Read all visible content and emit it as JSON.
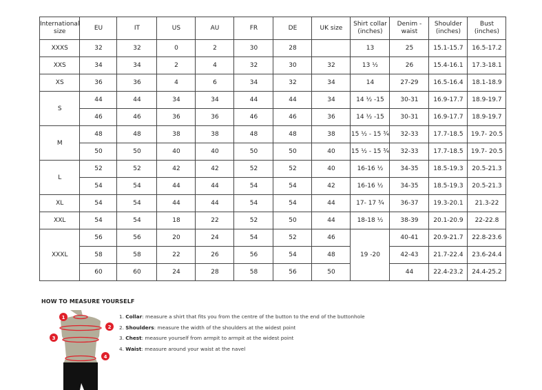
{
  "table": {
    "headers": [
      "International size",
      "EU",
      "IT",
      "US",
      "AU",
      "FR",
      "DE",
      "UK size",
      "Shirt collar (inches)",
      "Denim - waist",
      "Shoulder (inches)",
      "Bust (inches)"
    ],
    "groups": [
      {
        "size": "XXXS",
        "rows": [
          [
            "32",
            "32",
            "0",
            "2",
            "30",
            "28",
            "",
            "13",
            "25",
            "15.1-15.7",
            "16.5-17.2"
          ]
        ]
      },
      {
        "size": "XXS",
        "rows": [
          [
            "34",
            "34",
            "2",
            "4",
            "32",
            "30",
            "32",
            "13 ½",
            "26",
            "15.4-16.1",
            "17.3-18.1"
          ]
        ]
      },
      {
        "size": "XS",
        "rows": [
          [
            "36",
            "36",
            "4",
            "6",
            "34",
            "32",
            "34",
            "14",
            "27-29",
            "16.5-16.4",
            "18.1-18.9"
          ]
        ]
      },
      {
        "size": "S",
        "rows": [
          [
            "44",
            "44",
            "34",
            "34",
            "44",
            "44",
            "34",
            "14 ½ -15",
            "30-31",
            "16.9-17.7",
            "18.9-19.7"
          ],
          [
            "46",
            "46",
            "36",
            "36",
            "46",
            "46",
            "36",
            "14 ½ -15",
            "30-31",
            "16.9-17.7",
            "18.9-19.7"
          ]
        ]
      },
      {
        "size": "M",
        "rows": [
          [
            "48",
            "48",
            "38",
            "38",
            "48",
            "48",
            "38",
            "15 ½ - 15 ¾",
            "32-33",
            "17.7-18.5",
            "19.7- 20.5"
          ],
          [
            "50",
            "50",
            "40",
            "40",
            "50",
            "50",
            "40",
            "15 ½ - 15 ¾",
            "32-33",
            "17.7-18.5",
            "19.7- 20.5"
          ]
        ]
      },
      {
        "size": "L",
        "rows": [
          [
            "52",
            "52",
            "42",
            "42",
            "52",
            "52",
            "40",
            "16-16 ½",
            "34-35",
            "18.5-19.3",
            "20.5-21.3"
          ],
          [
            "54",
            "54",
            "44",
            "44",
            "54",
            "54",
            "42",
            "16-16 ½",
            "34-35",
            "18.5-19.3",
            "20.5-21.3"
          ]
        ]
      },
      {
        "size": "XL",
        "rows": [
          [
            "54",
            "54",
            "44",
            "44",
            "54",
            "54",
            "44",
            "17- 17 ¾",
            "36-37",
            "19.3-20.1",
            "21.3-22"
          ]
        ]
      },
      {
        "size": "XXL",
        "rows": [
          [
            "54",
            "54",
            "18",
            "22",
            "52",
            "50",
            "44",
            "18-18 ½",
            "38-39",
            "20.1-20.9",
            "22-22.8"
          ]
        ]
      },
      {
        "size": "XXXL",
        "merged_collar": "19 -20",
        "rows": [
          [
            "56",
            "56",
            "20",
            "24",
            "54",
            "52",
            "46",
            "",
            "40-41",
            "20.9-21.7",
            "22.8-23.6"
          ],
          [
            "58",
            "58",
            "22",
            "26",
            "56",
            "54",
            "48",
            "",
            "42-43",
            "21.7-22.4",
            "23.6-24.4"
          ],
          [
            "60",
            "60",
            "24",
            "28",
            "58",
            "56",
            "50",
            "",
            "44",
            "22.4-23.2",
            "24.4-25.2"
          ]
        ]
      }
    ]
  },
  "measure": {
    "title": "HOW TO MEASURE YOURSELF",
    "steps": [
      {
        "num": "1.",
        "term": "Collar",
        "text": ": measure a shirt that fits you from the centre of the button to the end of the buttonhole"
      },
      {
        "num": "2.",
        "term": "Shoulders",
        "text": ": measure the width of the shoulders at the widest point"
      },
      {
        "num": "3.",
        "term": "Chest",
        "text": ": measure yourself from armpit to armpit at the widest point"
      },
      {
        "num": "4.",
        "term": "Waist",
        "text": ": measure around your waist at the navel"
      }
    ],
    "markers": [
      "1",
      "2",
      "3",
      "4"
    ],
    "colors": {
      "marker": "#e0202a",
      "torso": "#b3ae9a",
      "shorts": "#111111"
    }
  }
}
